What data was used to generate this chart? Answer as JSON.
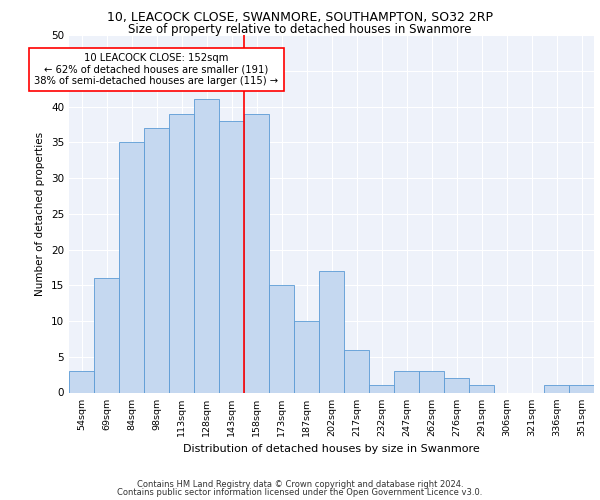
{
  "title1": "10, LEACOCK CLOSE, SWANMORE, SOUTHAMPTON, SO32 2RP",
  "title2": "Size of property relative to detached houses in Swanmore",
  "xlabel": "Distribution of detached houses by size in Swanmore",
  "ylabel": "Number of detached properties",
  "categories": [
    "54sqm",
    "69sqm",
    "84sqm",
    "98sqm",
    "113sqm",
    "128sqm",
    "143sqm",
    "158sqm",
    "173sqm",
    "187sqm",
    "202sqm",
    "217sqm",
    "232sqm",
    "247sqm",
    "262sqm",
    "276sqm",
    "291sqm",
    "306sqm",
    "321sqm",
    "336sqm",
    "351sqm"
  ],
  "values": [
    3,
    16,
    35,
    37,
    39,
    41,
    38,
    39,
    15,
    10,
    17,
    6,
    1,
    3,
    3,
    2,
    1,
    0,
    0,
    1,
    1
  ],
  "bar_color": "#c5d8f0",
  "bar_edge_color": "#5b9bd5",
  "vline_color": "red",
  "annotation_line1": "10 LEACOCK CLOSE: 152sqm",
  "annotation_line2": "← 62% of detached houses are smaller (191)",
  "annotation_line3": "38% of semi-detached houses are larger (115) →",
  "annotation_box_color": "white",
  "annotation_box_edge": "red",
  "ylim": [
    0,
    50
  ],
  "yticks": [
    0,
    5,
    10,
    15,
    20,
    25,
    30,
    35,
    40,
    45,
    50
  ],
  "background_color": "#eef2fa",
  "footer1": "Contains HM Land Registry data © Crown copyright and database right 2024.",
  "footer2": "Contains public sector information licensed under the Open Government Licence v3.0."
}
